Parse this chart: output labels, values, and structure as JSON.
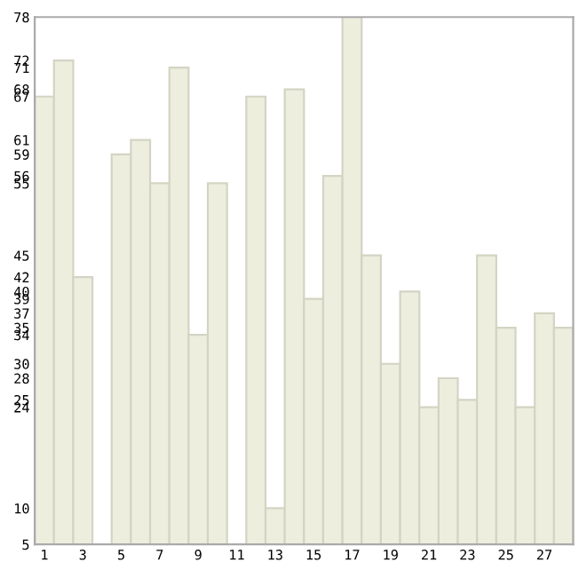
{
  "chart_data": {
    "type": "bar",
    "categories": [
      "1",
      null,
      "3",
      null,
      "5",
      null,
      "7",
      null,
      "9",
      null,
      "11",
      null,
      "13",
      null,
      "15",
      null,
      "17",
      null,
      "19",
      null,
      "21",
      null,
      "23",
      null,
      "25",
      null,
      "27",
      null
    ],
    "values": [
      67,
      72,
      42,
      5,
      59,
      61,
      55,
      71,
      34,
      55,
      5,
      67,
      10,
      68,
      39,
      56,
      78,
      45,
      30,
      40,
      24,
      28,
      25,
      45,
      35,
      24,
      37,
      35
    ],
    "color": "#eeeedf",
    "ylim": [
      5,
      78
    ],
    "yticks": [
      5,
      10,
      24,
      25,
      28,
      30,
      34,
      35,
      37,
      39,
      40,
      42,
      45,
      55,
      56,
      59,
      61,
      67,
      68,
      71,
      72,
      78
    ],
    "grid": false,
    "legend": false
  }
}
